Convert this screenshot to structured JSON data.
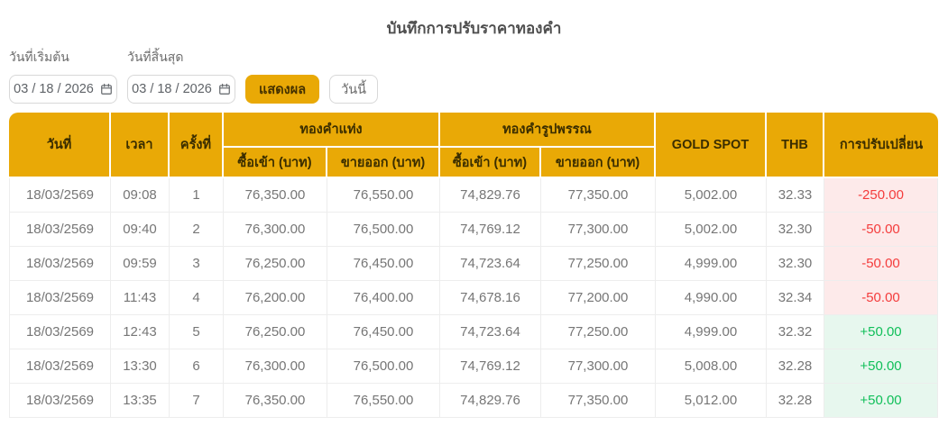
{
  "page": {
    "title": "บันทึกการปรับราคาทองคำ"
  },
  "filters": {
    "start_date": {
      "label": "วันที่เริ่มต้น",
      "value": "03 / 18 / 2026"
    },
    "end_date": {
      "label": "วันที่สิ้นสุด",
      "value": "03 / 18 / 2026"
    },
    "show_button_label": "แสดงผล",
    "today_button_label": "วันนี้"
  },
  "table": {
    "headers": {
      "date": "วันที่",
      "time": "เวลา",
      "round": "ครั้งที่",
      "gold_bar_group": "ทองคำแท่ง",
      "gold_jewelry_group": "ทองคำรูปพรรณ",
      "buy": "ซื้อเข้า (บาท)",
      "sell": "ขายออก (บาท)",
      "gold_spot": "GOLD SPOT",
      "thb": "THB",
      "change": "การปรับเปลี่ยน"
    },
    "rows": [
      {
        "date": "18/03/2569",
        "time": "09:08",
        "round": "1",
        "bar_buy": "76,350.00",
        "bar_sell": "76,550.00",
        "jewelry_buy": "74,829.76",
        "jewelry_sell": "77,350.00",
        "gold_spot": "5,002.00",
        "thb": "32.33",
        "change": "-250.00"
      },
      {
        "date": "18/03/2569",
        "time": "09:40",
        "round": "2",
        "bar_buy": "76,300.00",
        "bar_sell": "76,500.00",
        "jewelry_buy": "74,769.12",
        "jewelry_sell": "77,300.00",
        "gold_spot": "5,002.00",
        "thb": "32.30",
        "change": "-50.00"
      },
      {
        "date": "18/03/2569",
        "time": "09:59",
        "round": "3",
        "bar_buy": "76,250.00",
        "bar_sell": "76,450.00",
        "jewelry_buy": "74,723.64",
        "jewelry_sell": "77,250.00",
        "gold_spot": "4,999.00",
        "thb": "32.30",
        "change": "-50.00"
      },
      {
        "date": "18/03/2569",
        "time": "11:43",
        "round": "4",
        "bar_buy": "76,200.00",
        "bar_sell": "76,400.00",
        "jewelry_buy": "74,678.16",
        "jewelry_sell": "77,200.00",
        "gold_spot": "4,990.00",
        "thb": "32.34",
        "change": "-50.00"
      },
      {
        "date": "18/03/2569",
        "time": "12:43",
        "round": "5",
        "bar_buy": "76,250.00",
        "bar_sell": "76,450.00",
        "jewelry_buy": "74,723.64",
        "jewelry_sell": "77,250.00",
        "gold_spot": "4,999.00",
        "thb": "32.32",
        "change": "+50.00"
      },
      {
        "date": "18/03/2569",
        "time": "13:30",
        "round": "6",
        "bar_buy": "76,300.00",
        "bar_sell": "76,500.00",
        "jewelry_buy": "74,769.12",
        "jewelry_sell": "77,300.00",
        "gold_spot": "5,008.00",
        "thb": "32.28",
        "change": "+50.00"
      },
      {
        "date": "18/03/2569",
        "time": "13:35",
        "round": "7",
        "bar_buy": "76,350.00",
        "bar_sell": "76,550.00",
        "jewelry_buy": "74,829.76",
        "jewelry_sell": "77,350.00",
        "gold_spot": "5,012.00",
        "thb": "32.28",
        "change": "+50.00"
      }
    ]
  },
  "colors": {
    "accent_gold": "#e9a906",
    "header_text": "#3a2d00",
    "body_text": "#767676",
    "negative_text": "#f43c3c",
    "negative_bg": "#fdeaea",
    "positive_text": "#10bf59",
    "positive_bg": "#e7f7ee"
  }
}
